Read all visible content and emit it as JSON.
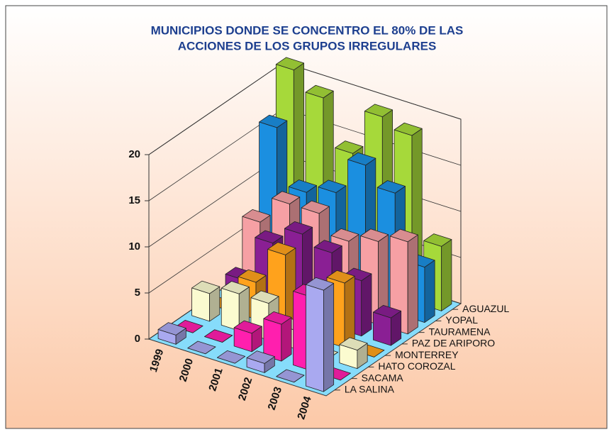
{
  "chart_data": {
    "type": "bar3d",
    "title": [
      "MUNICIPIOS DONDE SE CONCENTRO EL 80% DE LAS",
      "ACCIONES DE LOS GRUPOS IRREGULARES"
    ],
    "categories": [
      "1999",
      "2000",
      "2001",
      "2002",
      "2003",
      "2004"
    ],
    "series": [
      {
        "name": "LA SALINA",
        "color": "#a9a9f0",
        "values": [
          1,
          0,
          0,
          1,
          0,
          11
        ]
      },
      {
        "name": "SACAMA",
        "color": "#ff1fae",
        "values": [
          0,
          0,
          2,
          4,
          8,
          0
        ]
      },
      {
        "name": "HATO COROZAL",
        "color": "#fbfbd0",
        "values": [
          3,
          4,
          4,
          2,
          0,
          2
        ]
      },
      {
        "name": "MONTERREY",
        "color": "#ffa21c",
        "values": [
          0,
          4,
          8,
          0,
          7,
          0
        ]
      },
      {
        "name": "PAZ DE ARIPORO",
        "color": "#8a1f94",
        "values": [
          2,
          7,
          9,
          8,
          6,
          3
        ]
      },
      {
        "name": "TAURAMENA",
        "color": "#f6a0a4",
        "values": [
          7,
          10,
          10,
          8,
          9,
          10
        ]
      },
      {
        "name": "YOPAL",
        "color": "#1b8fe0",
        "values": [
          16,
          10,
          11,
          15,
          13,
          6
        ]
      },
      {
        "name": "AGUAZUL",
        "color": "#a6d93a",
        "values": [
          21,
          19,
          14,
          19,
          18,
          7
        ]
      }
    ],
    "ylim": [
      0,
      20
    ],
    "yticks": [
      0,
      5,
      10,
      15,
      20
    ],
    "grid": true
  }
}
